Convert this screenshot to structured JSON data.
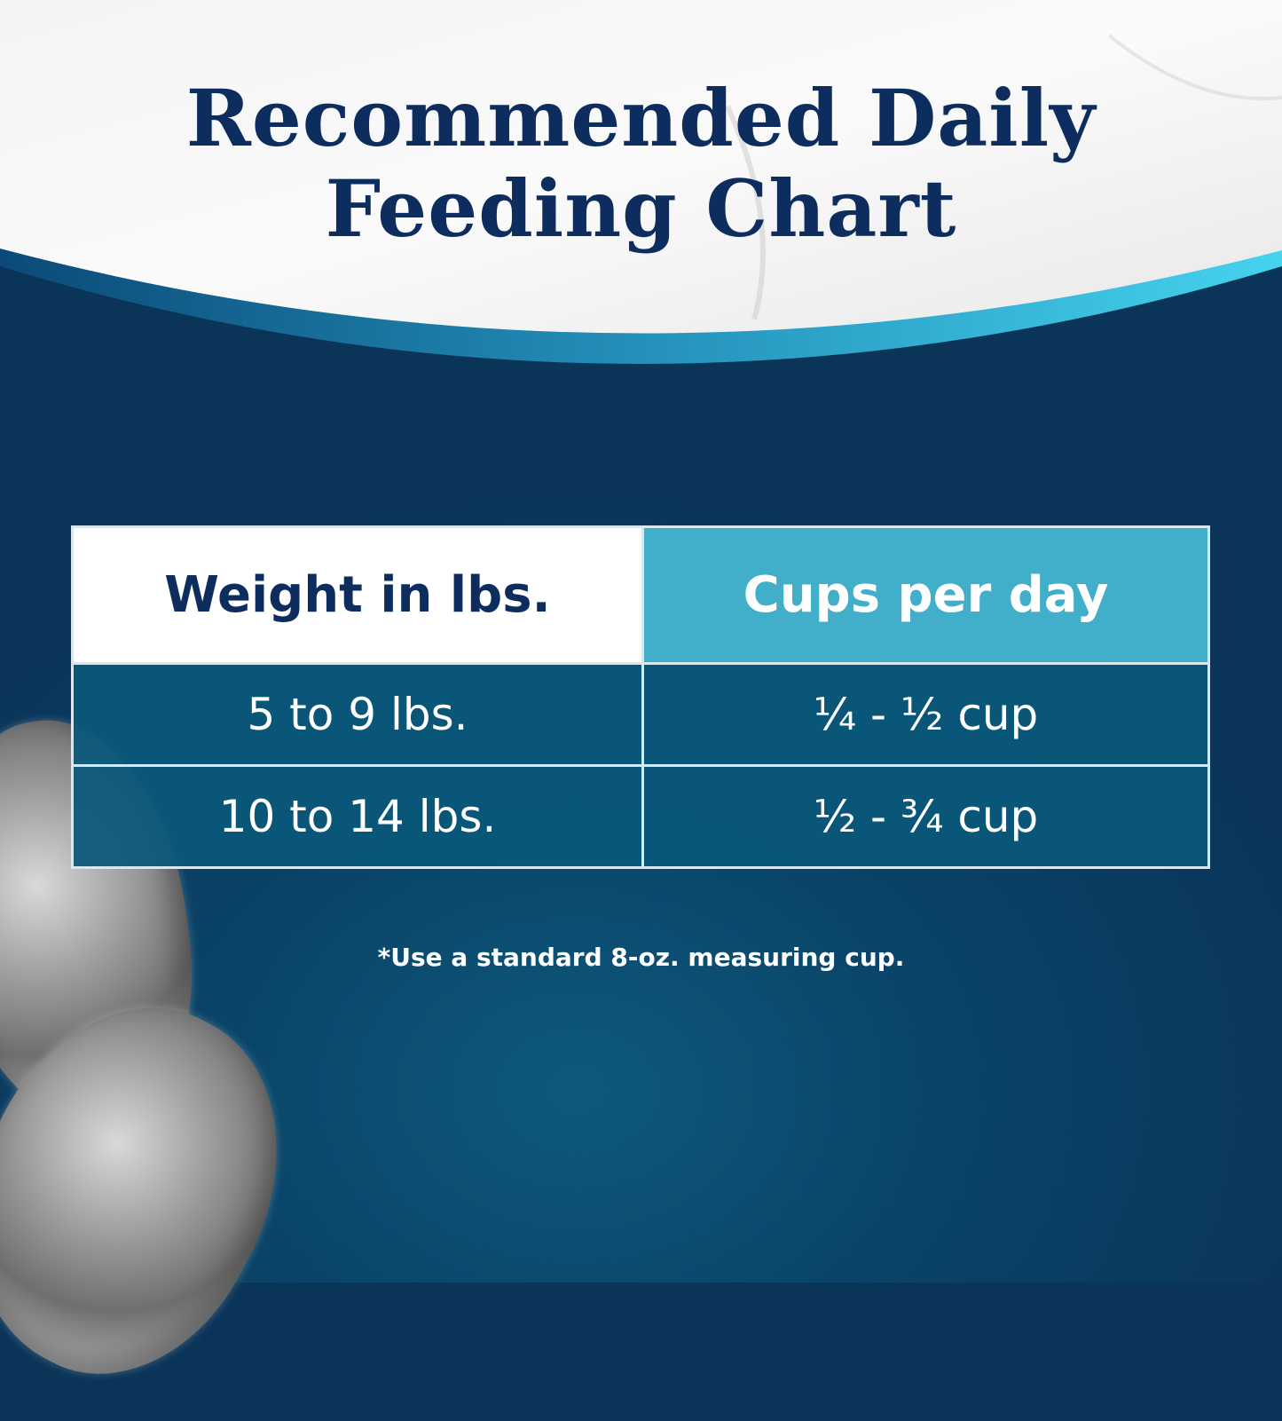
{
  "title": {
    "line1": "Recommended Daily",
    "line2": "Feeding Chart"
  },
  "table": {
    "headers": [
      "Weight in lbs.",
      "Cups per day"
    ],
    "rows": [
      [
        "5 to 9 lbs.",
        "¼ - ½ cup"
      ],
      [
        "10 to 14 lbs.",
        "½ - ¾ cup"
      ]
    ]
  },
  "footnote": "*Use a standard 8-oz. measuring cup.",
  "colors": {
    "navy": "#0c2d5e",
    "header_teal": "#41aeca",
    "row_blue": "#0a587a",
    "background": "#0a3e62"
  }
}
